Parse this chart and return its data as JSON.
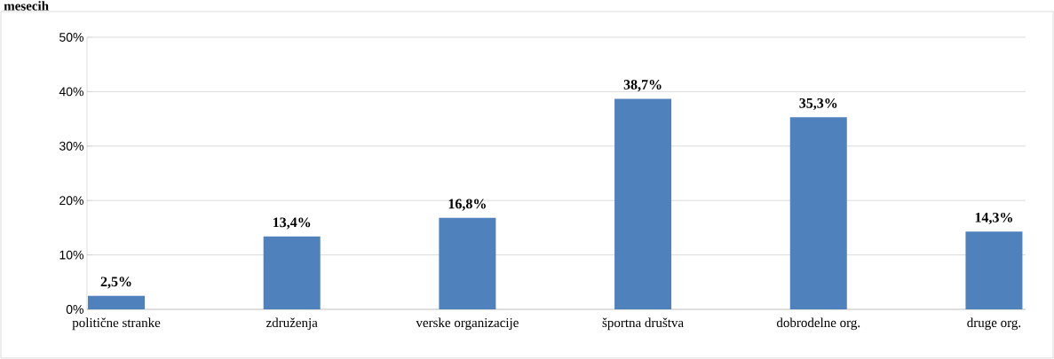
{
  "chart_data": {
    "type": "bar",
    "title": "mesecih",
    "categories": [
      "politične stranke",
      "združenja",
      "verske organizacije",
      "športna društva",
      "dobrodelne org.",
      "druge org."
    ],
    "values": [
      2.5,
      13.4,
      16.8,
      38.7,
      35.3,
      14.3
    ],
    "value_labels": [
      "2,5%",
      "13,4%",
      "16,8%",
      "38,7%",
      "35,3%",
      "14,3%"
    ],
    "color": "#4f81bd",
    "ylim": [
      0,
      50
    ],
    "yticks": [
      {
        "value": 0,
        "label": "0%"
      },
      {
        "value": 10,
        "label": "10%"
      },
      {
        "value": 20,
        "label": "20%"
      },
      {
        "value": 30,
        "label": "30%"
      },
      {
        "value": 40,
        "label": "40%"
      },
      {
        "value": 50,
        "label": "50%"
      }
    ],
    "grid": "y"
  }
}
